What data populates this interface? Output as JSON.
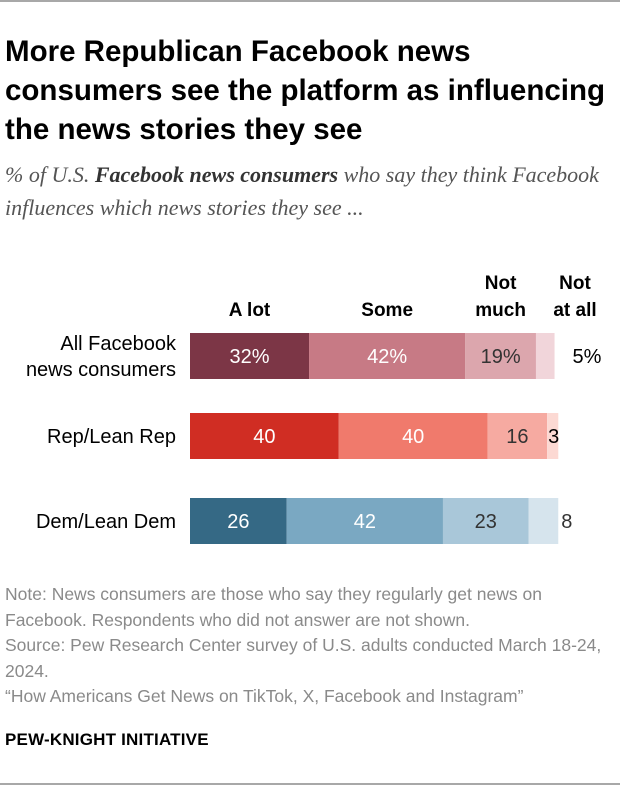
{
  "header": {
    "title": "More Republican Facebook news consumers see the platform as influencing the news stories they see",
    "subtitle_prefix": "% of U.S. ",
    "subtitle_bold": "Facebook news consumers",
    "subtitle_suffix": " who say they think Facebook influences which news stories they see ..."
  },
  "chart_data": {
    "type": "bar",
    "orientation": "horizontal",
    "stacked": true,
    "title": "More Republican Facebook news consumers see the platform as influencing the news stories they see",
    "xlim": [
      0,
      100
    ],
    "categories": [
      "All Facebook news consumers",
      "Rep/Lean Rep",
      "Dem/Lean Dem"
    ],
    "category_lines": [
      [
        "All Facebook",
        "news consumers"
      ],
      [
        "Rep/Lean Rep"
      ],
      [
        "Dem/Lean Dem"
      ]
    ],
    "series": [
      {
        "name": "A lot",
        "header_lines": [
          "A lot"
        ],
        "values": [
          32,
          40,
          26
        ]
      },
      {
        "name": "Some",
        "header_lines": [
          "Some"
        ],
        "values": [
          42,
          40,
          42
        ]
      },
      {
        "name": "Not much",
        "header_lines": [
          "Not",
          "much"
        ],
        "values": [
          19,
          16,
          23
        ]
      },
      {
        "name": "Not at all",
        "header_lines": [
          "Not",
          "at all"
        ],
        "values": [
          5,
          3,
          8
        ]
      }
    ],
    "value_labels": [
      [
        "32%",
        "42%",
        "19%",
        "5%"
      ],
      [
        "40",
        "40",
        "16",
        "3"
      ],
      [
        "26",
        "42",
        "23",
        "8"
      ]
    ],
    "colors": [
      [
        "#7c3646",
        "#c77a85",
        "#dca6ad",
        "#f1d5da"
      ],
      [
        "#d02d23",
        "#f07a6c",
        "#f6aaa1",
        "#fcd9d3"
      ],
      [
        "#356985",
        "#7aa8c2",
        "#a9c7d9",
        "#d6e4ed"
      ]
    ],
    "label_colors": [
      [
        "#ffffff",
        "#ffffff",
        "#333333",
        "#000000"
      ],
      [
        "#ffffff",
        "#ffffff",
        "#333333",
        "#000000"
      ],
      [
        "#ffffff",
        "#ffffff",
        "#333333",
        "#333333"
      ]
    ]
  },
  "notes": {
    "note": "Note: News consumers are those who say they regularly get news on Facebook. Respondents who did not answer are not shown.",
    "source": "Source: Pew Research Center survey of U.S. adults conducted March 18-24, 2024.",
    "report": "“How Americans Get News on TikTok, X, Facebook and Instagram”"
  },
  "footer": {
    "brand": "PEW-KNIGHT INITIATIVE"
  }
}
